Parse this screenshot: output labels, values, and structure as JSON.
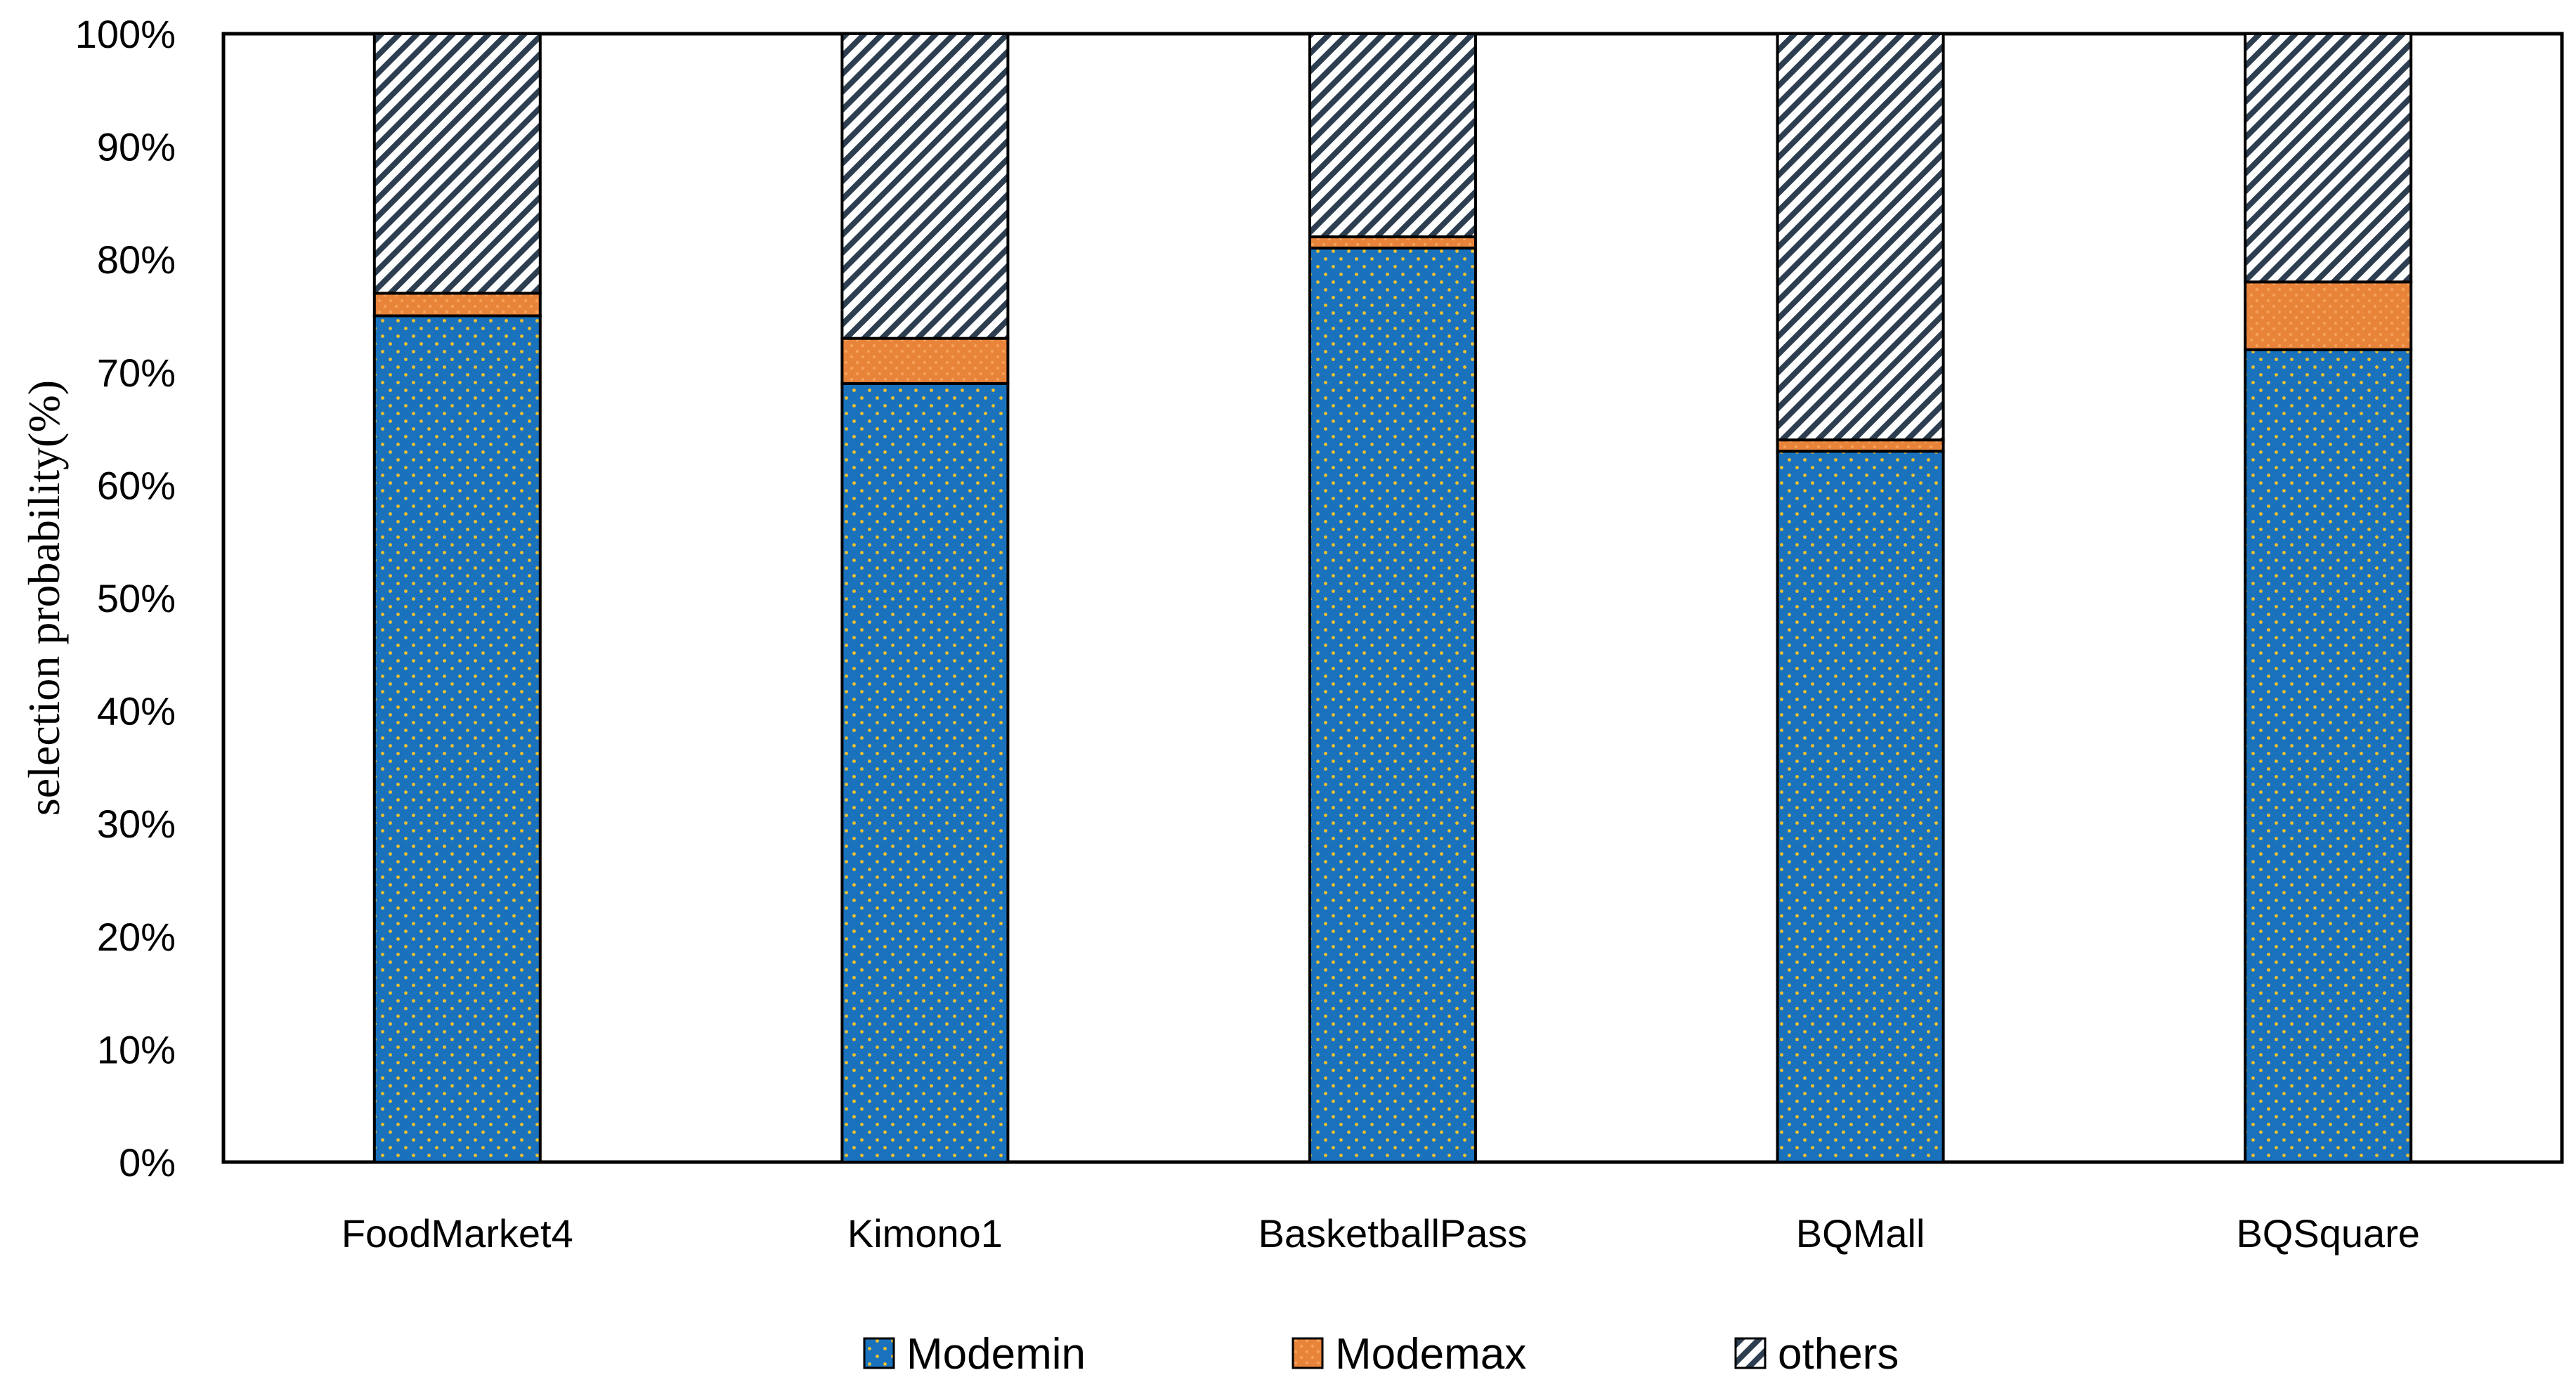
{
  "chart_data": {
    "type": "bar",
    "stacked": true,
    "percent": true,
    "title": "",
    "xlabel": "",
    "ylabel": "selection probability(%)",
    "ylim": [
      0,
      100
    ],
    "yticks": [
      "0%",
      "10%",
      "20%",
      "30%",
      "40%",
      "50%",
      "60%",
      "70%",
      "80%",
      "90%",
      "100%"
    ],
    "categories": [
      "FoodMarket4",
      "Kimono1",
      "BasketballPass",
      "BQMall",
      "BQSquare"
    ],
    "series": [
      {
        "name": "Modemin",
        "values": [
          75,
          69,
          81,
          63,
          72
        ],
        "color": "#1a72bd",
        "dot_color": "#f2c12e",
        "pattern": "dots"
      },
      {
        "name": "Modemax",
        "values": [
          2,
          4,
          1,
          1,
          6
        ],
        "color": "#e8833a",
        "dot_color": "#f5a15a",
        "pattern": "dots"
      },
      {
        "name": "others",
        "values": [
          23,
          27,
          18,
          36,
          22
        ],
        "color": "#2d3e50",
        "pattern": "diagonal-stripes"
      }
    ],
    "legend": "bottom",
    "grid": false
  }
}
